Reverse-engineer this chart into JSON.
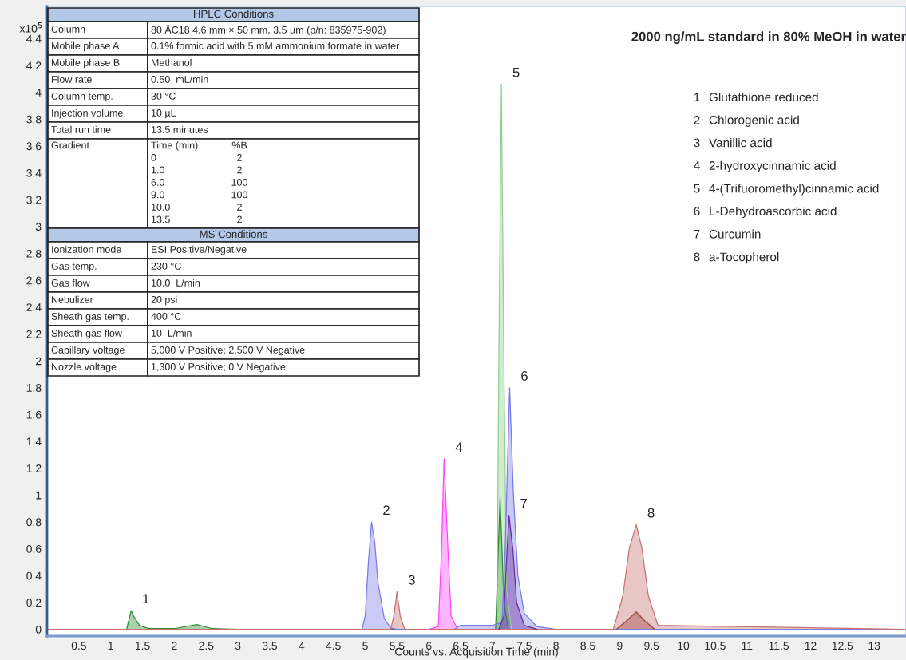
{
  "chart_data": {
    "type": "area",
    "title": "2000 ng/mL standard in 80% MeOH in water",
    "xlabel": "Counts vs. Acquisition Time (min)",
    "xlim": [
      0,
      13.5
    ],
    "xticks": [
      0.5,
      1,
      1.5,
      2,
      2.5,
      3,
      3.5,
      4,
      4.5,
      5,
      5.5,
      6,
      6.5,
      7,
      7.5,
      8,
      8.5,
      9,
      9.5,
      10,
      10.5,
      11,
      11.5,
      12,
      12.5,
      13
    ],
    "ylim": [
      -0.05,
      4.64
    ],
    "yticks": [
      0,
      0.2,
      0.4,
      0.6,
      0.8,
      1,
      1.2,
      1.4,
      1.6,
      1.8,
      2,
      2.2,
      2.4,
      2.6,
      2.8,
      3,
      3.2,
      3.4,
      3.6,
      3.8,
      4,
      4.2,
      4.4
    ],
    "series": [
      {
        "color": "#2e8b2e",
        "x": [
          0,
          1.25,
          1.32,
          1.37,
          1.45,
          1.6,
          2.0,
          2.35,
          2.6,
          3.0,
          7.05,
          7.12,
          7.18,
          7.25,
          13.5
        ],
        "values": [
          0,
          0,
          0.14,
          0.09,
          0.03,
          0.005,
          0.005,
          0.035,
          0.005,
          0,
          0,
          0.98,
          0.2,
          0,
          0
        ]
      },
      {
        "color": "#8fd08f",
        "x": [
          6.5,
          7.07,
          7.1,
          7.14,
          7.18,
          7.22,
          7.3,
          8.0
        ],
        "values": [
          0,
          0,
          2.0,
          4.06,
          2.0,
          0.3,
          0,
          0
        ]
      },
      {
        "color": "#7b7be8",
        "x": [
          0,
          4.95,
          5.0,
          5.05,
          5.1,
          5.15,
          5.2,
          5.3,
          5.4,
          5.5,
          6.4,
          6.5,
          7.0,
          7.15,
          7.2,
          7.27,
          7.33,
          7.4,
          7.5,
          7.7,
          8.0,
          13.5
        ],
        "values": [
          0,
          0,
          0.1,
          0.5,
          0.8,
          0.65,
          0.35,
          0.08,
          0.01,
          0,
          0,
          0.03,
          0.03,
          0.05,
          0.6,
          1.8,
          1.0,
          0.4,
          0.12,
          0.02,
          0,
          0
        ]
      },
      {
        "color": "#c87070",
        "x": [
          0,
          5.4,
          5.45,
          5.5,
          5.55,
          5.62,
          8.9,
          9.05,
          9.15,
          9.26,
          9.35,
          9.45,
          9.6,
          13.5
        ],
        "values": [
          0,
          0,
          0.1,
          0.28,
          0.1,
          0,
          0,
          0.25,
          0.6,
          0.78,
          0.6,
          0.25,
          0.03,
          0
        ]
      },
      {
        "color": "#a04040",
        "x": [
          8.95,
          9.1,
          9.26,
          9.4,
          9.55
        ],
        "values": [
          0,
          0.06,
          0.13,
          0.06,
          0
        ]
      },
      {
        "color": "#ff44ff",
        "x": [
          6.0,
          6.15,
          6.2,
          6.24,
          6.3,
          6.35,
          6.45
        ],
        "values": [
          0,
          0.02,
          0.6,
          1.27,
          0.6,
          0.1,
          0
        ]
      },
      {
        "color": "#6a2aa0",
        "x": [
          7.1,
          7.18,
          7.22,
          7.26,
          7.32,
          7.38,
          7.5,
          7.7
        ],
        "values": [
          0,
          0.1,
          0.5,
          0.85,
          0.6,
          0.2,
          0.03,
          0
        ]
      }
    ],
    "annotations": [
      "x10$^{5}$",
      {
        "text": "1",
        "x": 1.32,
        "y": 0.14
      },
      {
        "text": "2",
        "x": 5.1,
        "y": 0.8
      },
      {
        "text": "3",
        "x": 5.5,
        "y": 0.28
      },
      {
        "text": "4",
        "x": 6.24,
        "y": 1.27
      },
      {
        "text": "5",
        "x": 7.14,
        "y": 4.06
      },
      {
        "text": "6",
        "x": 7.27,
        "y": 1.8
      },
      {
        "text": "7",
        "x": 7.26,
        "y": 0.85
      },
      {
        "text": "8",
        "x": 9.26,
        "y": 0.78
      },
      "1",
      "Glutathione reduced",
      "2",
      "Chlorogenic acid",
      "3",
      "Vanillic acid",
      "4",
      "2-hydroxycinnamic acid",
      "5",
      "4-(Trifuoromethyl)cinnamic acid",
      "6",
      "L-Dehydroascorbic acid",
      "7",
      "Curcumin",
      "8",
      "a-Tocopherol",
      "HPLC Conditions",
      "Column",
      "80 ÅC18 4.6 mm × 50 mm, 3.5 µm (p/n: 835975-902)",
      "Mobile phase A",
      "0.1% formic acid with 5 mM ammonium formate in water",
      "Mobile phase B",
      "Methanol",
      "Flow rate",
      "0.50  mL/min",
      "Column temp.",
      "30 °C",
      "Injection volume",
      "10 µL",
      "Total run time",
      "13.5 minutes",
      "Gradient",
      "Time (min)",
      "%B",
      "0",
      "2",
      "1.0",
      "2",
      "6.0",
      "100",
      "9.0",
      "100",
      "10.0",
      "2",
      "13.5",
      "2",
      "MS Conditions",
      "Ionization mode",
      "ESI Positive/Negative",
      "Gas temp.",
      "230 °C",
      "Gas flow",
      "10.0  L/min",
      "Nebulizer",
      "20 psi",
      "Sheath gas temp.",
      "400 °C",
      "Sheath gas flow",
      "10  L/min",
      "Capillary voltage",
      "5,000 V Positive; 2,500 V Negative",
      "Nozzle voltage",
      "1,300 V Positive; 0 V Negative"
    ]
  }
}
